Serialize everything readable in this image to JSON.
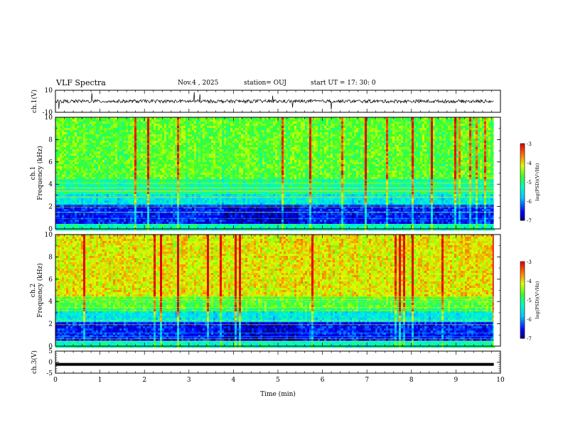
{
  "header": {
    "title": "VLF Spectra",
    "date": "Nov.4 , 2025",
    "station": "station= OUJ",
    "start_ut": "start UT = 17: 30: 0"
  },
  "chart_data": [
    {
      "type": "line",
      "ylabel": "ch.1(V)",
      "ylim": [
        -10,
        10
      ],
      "yticks": [
        "10",
        "-10"
      ],
      "grid": false,
      "description_values": "noisy waveform centered near 0 V with occasional spikes"
    },
    {
      "type": "heatmap",
      "ylabel_line1": "ch.1",
      "ylabel_line2": "Frequency (kHz)",
      "ylim": [
        0,
        10
      ],
      "yticks": [
        "10",
        "8",
        "6",
        "4",
        "2",
        "0"
      ],
      "colorbar": {
        "label": "log(PSD)(V²/Hz)",
        "range": [
          -7,
          -3
        ],
        "ticks": [
          "-3",
          "-4",
          "-5",
          "-6",
          "-7"
        ]
      }
    },
    {
      "type": "heatmap",
      "ylabel_line1": "ch.2",
      "ylabel_line2": "Frequency (kHz)",
      "ylim": [
        0,
        10
      ],
      "yticks": [
        "10",
        "8",
        "6",
        "4",
        "2",
        "0"
      ],
      "colorbar": {
        "label": "log(PSD)(V²/Hz)",
        "range": [
          -7,
          -3
        ],
        "ticks": [
          "-3",
          "-4",
          "-5",
          "-6",
          "-7"
        ]
      }
    },
    {
      "type": "line",
      "ylabel": "ch.3(V)",
      "ylim": [
        -5,
        5
      ],
      "yticks": [
        "5",
        "0",
        "-5"
      ],
      "values_approx": "flat line near -1 V"
    }
  ],
  "xaxis": {
    "label": "Time (min)",
    "xlim": [
      0,
      10
    ],
    "ticks": [
      "0",
      "1",
      "2",
      "3",
      "4",
      "5",
      "6",
      "7",
      "8",
      "9",
      "10"
    ]
  },
  "colors": {
    "background": "#ffffff",
    "trace": "#000000"
  }
}
